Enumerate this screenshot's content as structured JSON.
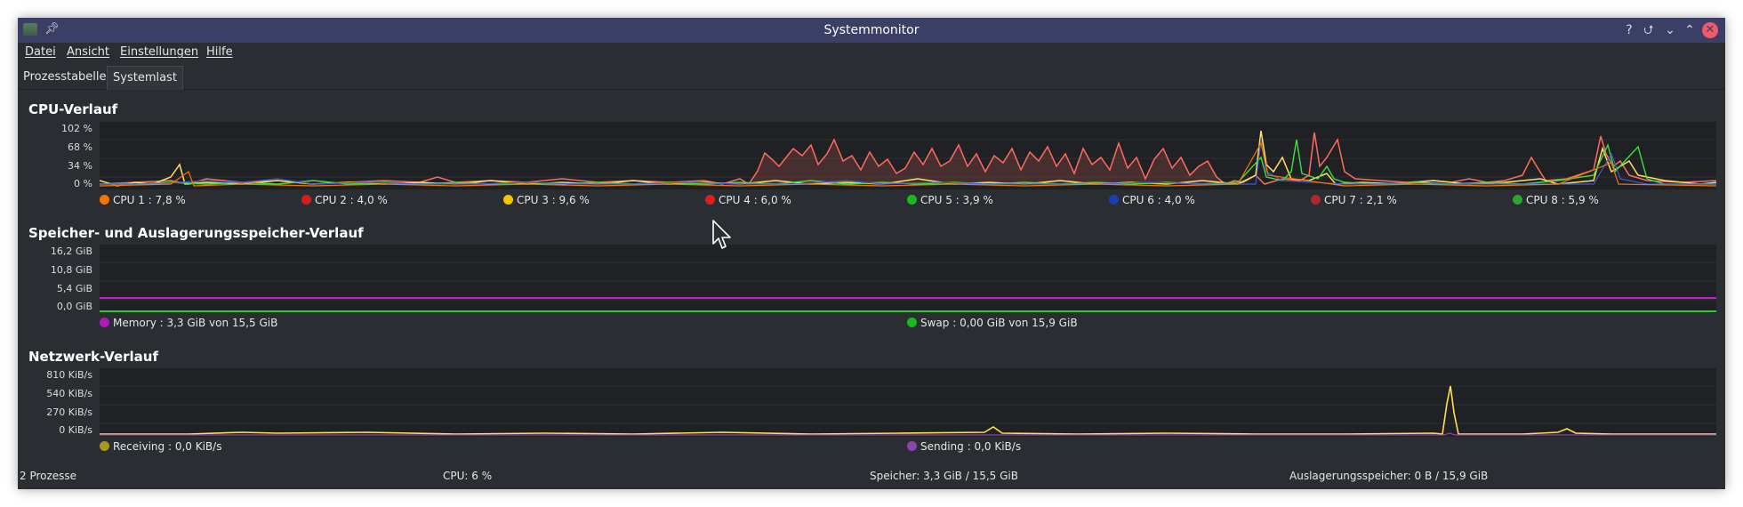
{
  "window": {
    "title": "Systemmonitor"
  },
  "menu": [
    "Datei",
    "Ansicht",
    "Einstellungen",
    "Hilfe"
  ],
  "tabs": [
    {
      "label": "Prozesstabelle",
      "active": false
    },
    {
      "label": "Systemlast",
      "active": true
    }
  ],
  "cpu": {
    "title": "CPU-Verlauf",
    "y_ticks": [
      "102 %",
      "68 %",
      "34 %",
      "0 %"
    ],
    "legend": [
      {
        "label": "CPU 1 : 7,8 %",
        "color": "#f67400"
      },
      {
        "label": "CPU 2 : 4,0 %",
        "color": "#da1b1b"
      },
      {
        "label": "CPU 3 : 9,6 %",
        "color": "#f6c200"
      },
      {
        "label": "CPU 4 : 6,0 %",
        "color": "#e31c1c"
      },
      {
        "label": "CPU 5 : 3,9 %",
        "color": "#1cb91c"
      },
      {
        "label": "CPU 6 : 4,0 %",
        "color": "#1a3fb5"
      },
      {
        "label": "CPU 7 : 2,1 %",
        "color": "#a92a2a"
      },
      {
        "label": "CPU 8 : 5,9 %",
        "color": "#28a828"
      }
    ]
  },
  "memory": {
    "title": "Speicher- und Auslagerungsspeicher-Verlauf",
    "y_ticks": [
      "16,2 GiB",
      "10,8 GiB",
      "5,4 GiB",
      "0,0 GiB"
    ],
    "legend": [
      {
        "label": "Memory : 3,3 GiB von 15,5 GiB",
        "color": "#b01ab8"
      },
      {
        "label": "Swap : 0,00 GiB von 15,9 GiB",
        "color": "#1cb91c"
      }
    ]
  },
  "network": {
    "title": "Netzwerk-Verlauf",
    "y_ticks": [
      "810 KiB/s",
      "540 KiB/s",
      "270 KiB/s",
      "0 KiB/s"
    ],
    "legend": [
      {
        "label": "Receiving : 0,0 KiB/s",
        "color": "#a89a1c"
      },
      {
        "label": "Sending : 0,0 KiB/s",
        "color": "#8e44ad"
      }
    ]
  },
  "status": {
    "processes": "2 Prozesse",
    "cpu": "CPU: 6 %",
    "memory": "Speicher: 3,3 GiB / 15,5 GiB",
    "swap": "Auslagerungsspeicher: 0 B / 15,9 GiB"
  },
  "colors": {
    "titlebar": "#3c3f65",
    "background": "#2a2e32",
    "plot_background": "#1f2125",
    "cpu4_area": "#ff6b5e",
    "cpu_line_yellow": "#ffe15a",
    "cpu_line_green": "#3ee03e",
    "memory_line": "#c51fcf",
    "swap_line": "#2bd12b",
    "network_line": "#ffe14a"
  }
}
